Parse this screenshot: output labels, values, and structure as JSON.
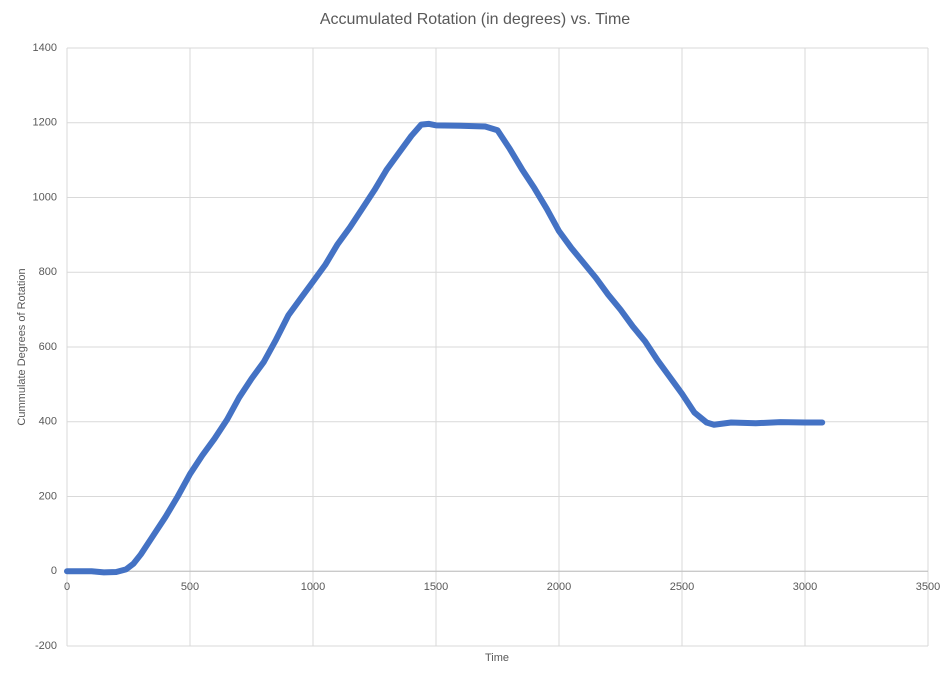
{
  "chart_data": {
    "type": "line",
    "title": "Accumulated Rotation (in degrees) vs. Time",
    "x_label": "Time",
    "y_label": "Cummulate Degrees of Rotation",
    "x": [
      0,
      100,
      150,
      200,
      240,
      270,
      300,
      350,
      400,
      450,
      500,
      550,
      600,
      650,
      700,
      750,
      800,
      850,
      900,
      950,
      1000,
      1050,
      1100,
      1150,
      1200,
      1250,
      1300,
      1350,
      1400,
      1440,
      1470,
      1500,
      1600,
      1700,
      1750,
      1800,
      1850,
      1900,
      1950,
      2000,
      2050,
      2100,
      2150,
      2200,
      2250,
      2300,
      2350,
      2400,
      2450,
      2500,
      2550,
      2600,
      2630,
      2700,
      2800,
      2900,
      3000,
      3070
    ],
    "series": [
      {
        "color": "#4472c4",
        "values": [
          0,
          0,
          -3,
          -2,
          5,
          20,
          45,
          95,
          145,
          200,
          260,
          310,
          355,
          405,
          465,
          515,
          560,
          620,
          685,
          730,
          775,
          820,
          875,
          920,
          970,
          1020,
          1075,
          1120,
          1165,
          1195,
          1197,
          1193,
          1192,
          1190,
          1180,
          1130,
          1075,
          1025,
          970,
          910,
          865,
          825,
          785,
          740,
          700,
          655,
          615,
          565,
          520,
          475,
          425,
          398,
          392,
          398,
          396,
          399,
          398,
          398
        ]
      }
    ],
    "xlim": [
      0,
      3500
    ],
    "xticks": [
      0,
      500,
      1000,
      1500,
      2000,
      2500,
      3000,
      3500
    ],
    "ylim": [
      -200,
      1400
    ],
    "yticks": [
      -200,
      0,
      200,
      400,
      600,
      800,
      1000,
      1200,
      1400
    ],
    "grid": true
  }
}
